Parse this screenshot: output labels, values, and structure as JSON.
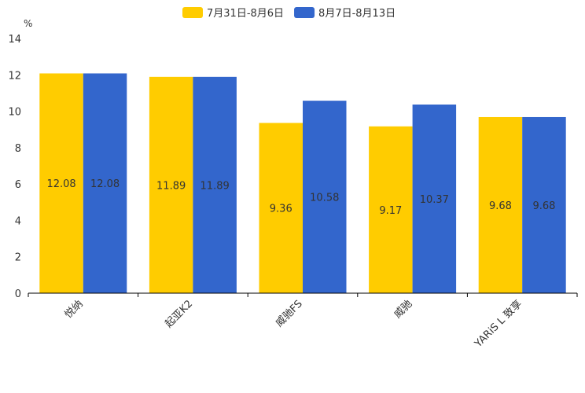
{
  "chart_data": {
    "type": "bar",
    "title": "",
    "xlabel": "",
    "ylabel": "%",
    "ylim": [
      0,
      14
    ],
    "yticks": [
      0,
      2,
      4,
      6,
      8,
      10,
      12,
      14
    ],
    "grid": false,
    "legend_position": "top-center",
    "categories": [
      "悦纳",
      "起亚K2",
      "威驰FS",
      "威驰",
      "YARiS L 致享"
    ],
    "series": [
      {
        "name": "7月31日-8月6日",
        "color": "#FFCC00",
        "values": [
          12.08,
          11.89,
          9.36,
          9.17,
          9.68
        ]
      },
      {
        "name": "8月7日-8月13日",
        "color": "#3366CC",
        "values": [
          12.08,
          11.89,
          10.58,
          10.37,
          9.68
        ]
      }
    ]
  }
}
